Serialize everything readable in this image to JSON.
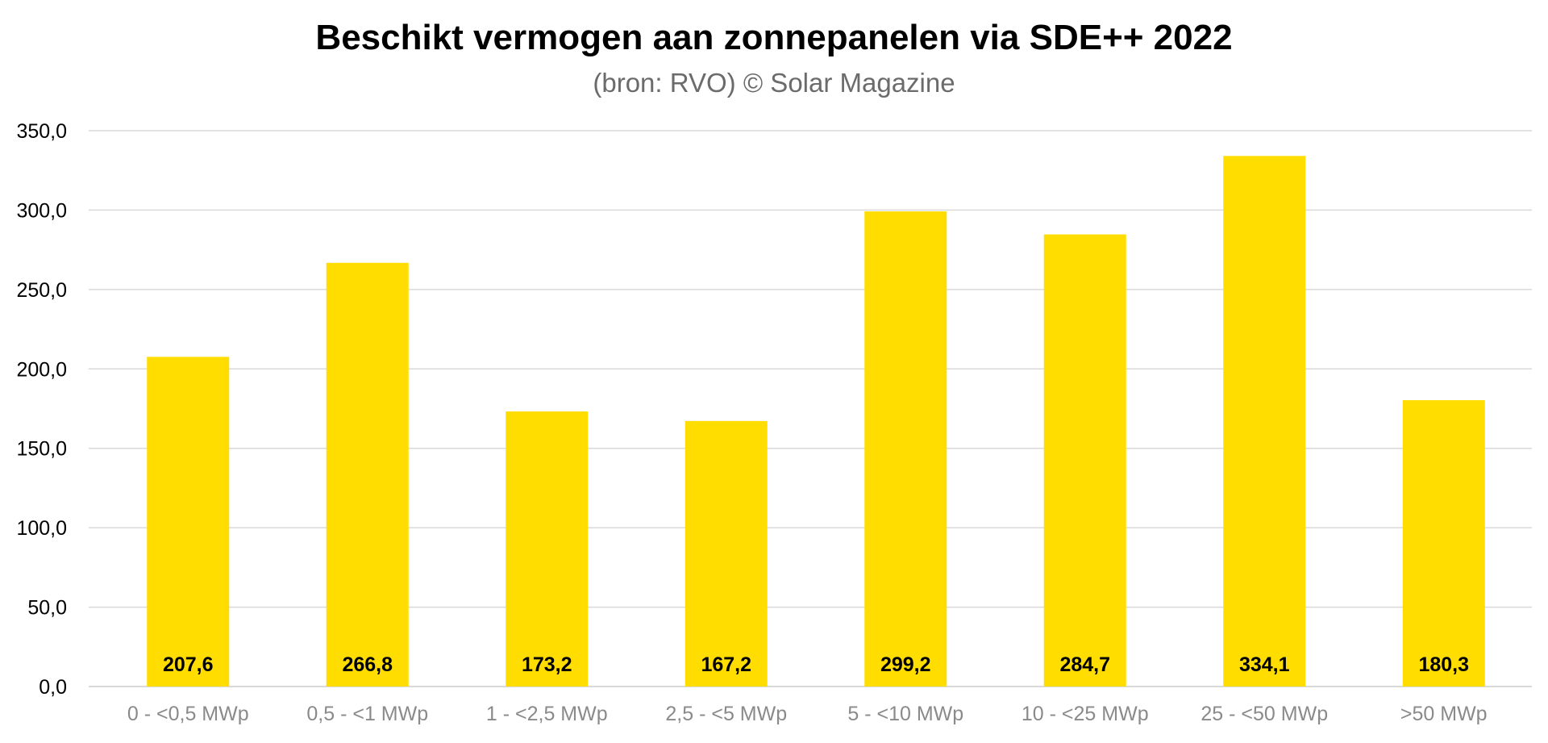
{
  "chart_data": {
    "type": "bar",
    "title": "Beschikt vermogen aan zonnepanelen via SDE++ 2022",
    "subtitle": "(bron: RVO) © Solar Magazine",
    "categories": [
      "0 - <0,5 MWp",
      "0,5 - <1 MWp",
      "1 - <2,5 MWp",
      "2,5 - <5 MWp",
      "5 - <10 MWp",
      "10 - <25 MWp",
      "25 - <50 MWp",
      ">50 MWp"
    ],
    "values": [
      207.6,
      266.8,
      173.2,
      167.2,
      299.2,
      284.7,
      334.1,
      180.3
    ],
    "value_labels": [
      "207,6",
      "266,8",
      "173,2",
      "167,2",
      "299,2",
      "284,7",
      "334,1",
      "180,3"
    ],
    "yticks": [
      0,
      50,
      100,
      150,
      200,
      250,
      300,
      350
    ],
    "ytick_labels": [
      "0,0",
      "50,0",
      "100,0",
      "150,0",
      "200,0",
      "250,0",
      "300,0",
      "350,0"
    ],
    "ylim": [
      0,
      350
    ],
    "xlabel": "",
    "ylabel": "",
    "grid": true,
    "legend": "none",
    "bar_color": "#FFDD00",
    "grid_color": "#d9d9d9",
    "axis_label_color": "#8a8a8a"
  }
}
